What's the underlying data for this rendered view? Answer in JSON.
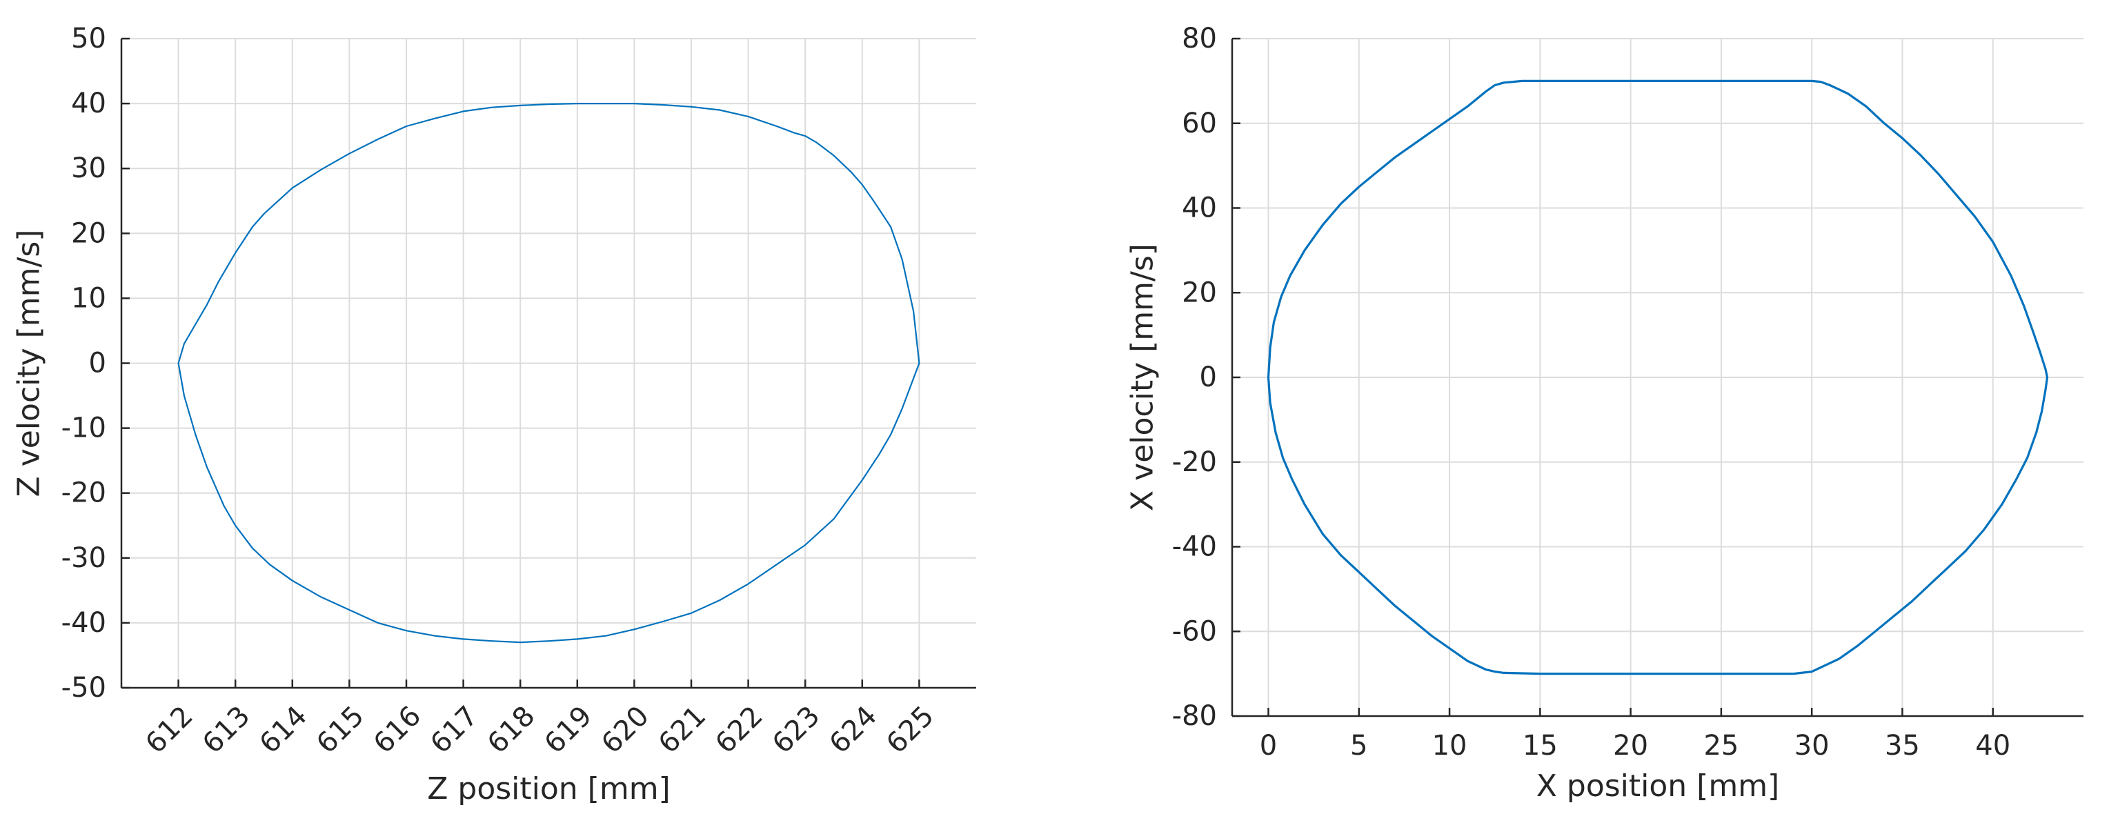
{
  "chart_data": [
    {
      "type": "line",
      "title": "",
      "xlabel": "Z position [mm]",
      "ylabel": "Z velocity [mm/s]",
      "xlim": [
        611,
        626
      ],
      "ylim": [
        -50,
        50
      ],
      "xticks": [
        612,
        613,
        614,
        615,
        616,
        617,
        618,
        619,
        620,
        621,
        622,
        623,
        624,
        625
      ],
      "yticks": [
        -50,
        -40,
        -30,
        -20,
        -10,
        0,
        10,
        20,
        30,
        40,
        50
      ],
      "xtick_rotation": "rotated",
      "grid": true,
      "legend": "none",
      "color": "#0072bd",
      "series": [
        {
          "x": [
            625.0,
            624.9,
            624.7,
            624.5,
            624.2,
            624.0,
            623.8,
            623.5,
            623.2,
            623.0,
            622.8,
            622.5,
            622.0,
            621.5,
            621.0,
            620.5,
            620.0,
            619.5,
            619.0,
            618.5,
            618.0,
            617.5,
            617.0,
            616.5,
            616.0,
            615.5,
            615.0,
            614.5,
            614.0,
            613.5,
            613.3,
            613.0,
            612.7,
            612.5,
            612.3,
            612.1,
            612.0
          ],
          "y": [
            0,
            8,
            16,
            21,
            25,
            27.5,
            29.5,
            32,
            34,
            35,
            35.5,
            36.5,
            38,
            39,
            39.5,
            39.8,
            40,
            40,
            40,
            39.9,
            39.7,
            39.4,
            38.8,
            37.7,
            36.5,
            34.5,
            32.3,
            29.8,
            27,
            23,
            21,
            17,
            12.5,
            9,
            6,
            3,
            0
          ]
        },
        {
          "x": [
            612.0,
            612.1,
            612.3,
            612.5,
            612.8,
            613.0,
            613.3,
            613.6,
            614.0,
            614.5,
            615.0,
            615.5,
            616.0,
            616.5,
            617.0,
            617.5,
            618.0,
            618.5,
            619.0,
            619.5,
            620.0,
            620.5,
            621.0,
            621.5,
            622.0,
            622.5,
            623.0,
            623.5,
            624.0,
            624.3,
            624.5,
            624.7,
            624.85,
            625.0
          ],
          "y": [
            0,
            -5,
            -11,
            -16,
            -22,
            -25,
            -28.5,
            -31,
            -33.5,
            -36,
            -38,
            -40,
            -41.2,
            -42,
            -42.5,
            -42.8,
            -43,
            -42.8,
            -42.5,
            -42,
            -41,
            -39.8,
            -38.5,
            -36.5,
            -34,
            -31,
            -28,
            -24,
            -18,
            -14,
            -11,
            -7,
            -3.5,
            0
          ]
        }
      ]
    },
    {
      "type": "line",
      "title": "",
      "xlabel": "X position [mm]",
      "ylabel": "X velocity [mm/s]",
      "xlim": [
        -2,
        45
      ],
      "ylim": [
        -80,
        80
      ],
      "xticks": [
        0,
        5,
        10,
        15,
        20,
        25,
        30,
        35,
        40
      ],
      "yticks": [
        -80,
        -60,
        -40,
        -20,
        0,
        20,
        40,
        60,
        80
      ],
      "xtick_rotation": "none",
      "grid": true,
      "legend": "none",
      "color": "#0072bd",
      "series": [
        {
          "x": [
            0.0,
            0.1,
            0.3,
            0.7,
            1.2,
            2.0,
            3.0,
            4.0,
            5.0,
            6.0,
            7.0,
            8.0,
            9.0,
            10.0,
            11.0,
            12.0,
            12.5,
            13.0,
            14.0,
            15.0,
            20.0,
            25.0,
            29.0,
            30.0,
            30.5,
            31.0,
            32.0,
            33.0,
            34.0,
            35.0,
            36.0,
            37.0,
            38.0,
            39.0,
            40.0,
            41.0,
            41.7,
            42.2,
            42.6,
            42.9,
            43.0,
            42.9,
            42.7,
            42.4,
            41.9,
            41.3,
            40.5,
            39.5,
            38.5,
            37.5,
            36.5,
            35.5,
            34.5,
            33.5,
            32.5,
            31.5,
            30.5,
            30.0,
            29.0,
            25.0,
            20.0,
            15.0,
            13.0,
            12.5,
            12.0,
            11.0,
            10.0,
            9.0,
            8.0,
            7.0,
            6.0,
            5.0,
            4.0,
            3.0,
            2.0,
            1.3,
            0.8,
            0.4,
            0.1,
            0.0
          ],
          "y": [
            0,
            7,
            13,
            19,
            24,
            30,
            36,
            41,
            45,
            48.5,
            52,
            55,
            58,
            61,
            64,
            67.5,
            69,
            69.6,
            70,
            70,
            70,
            70,
            70,
            70,
            69.8,
            69,
            67,
            64,
            60,
            56.5,
            52.5,
            48,
            43,
            38,
            32,
            24,
            17,
            11,
            6,
            2,
            0,
            -3,
            -8,
            -13,
            -19,
            -24,
            -30,
            -36,
            -41,
            -45,
            -49,
            -53,
            -56.5,
            -60,
            -63.5,
            -66.5,
            -68.5,
            -69.5,
            -70,
            -70,
            -70,
            -70,
            -69.8,
            -69.5,
            -69,
            -67,
            -64,
            -61,
            -57.5,
            -54,
            -50,
            -46,
            -42,
            -37,
            -30,
            -24,
            -19,
            -13,
            -6,
            0
          ]
        }
      ]
    }
  ]
}
